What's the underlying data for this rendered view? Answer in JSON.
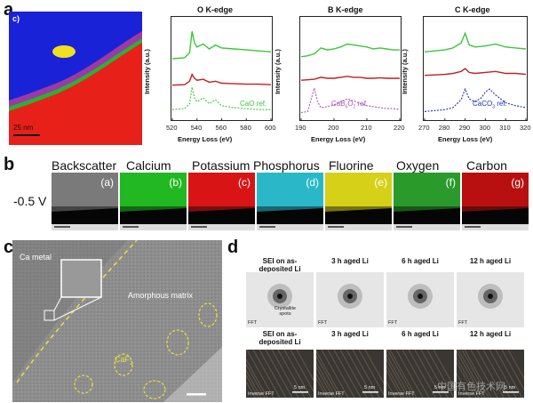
{
  "panel_a": {
    "letter": "a",
    "eels_map_label": "c)",
    "eels_scale": "25 nm",
    "chart_data": [
      {
        "type": "line",
        "title": "O K-edge",
        "xlabel": "Energy Loss (eV)",
        "ylabel": "Intensity (a.u.)",
        "xlim": [
          520,
          600
        ],
        "x_ticks": [
          "520",
          "540",
          "560",
          "580",
          "600"
        ],
        "series": [
          {
            "name": "",
            "color": "#3cc83c",
            "x": [
              520,
              530,
              534,
              536,
              538,
              540,
              545,
              550,
              555,
              560,
              570,
              580,
              590,
              600
            ],
            "y": [
              6.0,
              6.1,
              6.6,
              8.8,
              7.6,
              7.2,
              7.5,
              7.0,
              7.4,
              7.1,
              7.0,
              6.9,
              6.8,
              6.7
            ]
          },
          {
            "name": "",
            "color": "#c02020",
            "x": [
              520,
              530,
              534,
              536,
              538,
              540,
              545,
              550,
              555,
              560,
              570,
              580,
              590,
              600
            ],
            "y": [
              3.3,
              3.35,
              3.7,
              4.4,
              4.0,
              3.8,
              3.9,
              3.6,
              3.7,
              3.5,
              3.45,
              3.4,
              3.4,
              3.35
            ]
          },
          {
            "name": "CaO ref.",
            "color": "#3cc83c",
            "dash": true,
            "x": [
              520,
              530,
              534,
              536,
              538,
              540,
              545,
              550,
              555,
              560,
              570,
              580,
              590,
              600
            ],
            "y": [
              0.8,
              0.9,
              1.4,
              3.1,
              2.0,
              1.6,
              2.0,
              1.4,
              1.8,
              1.2,
              1.0,
              0.9,
              0.8,
              0.8
            ]
          }
        ]
      },
      {
        "type": "line",
        "title": "B K-edge",
        "xlabel": "Energy Loss (eV)",
        "ylabel": "Intensity (a.u.)",
        "xlim": [
          190,
          220
        ],
        "x_ticks": [
          "190",
          "200",
          "210",
          "220"
        ],
        "series": [
          {
            "name": "",
            "color": "#3cc83c",
            "x": [
              190,
              192,
              194,
              196,
              198,
              200,
              202,
              204,
              206,
              208,
              210,
              212,
              214,
              216,
              218,
              220
            ],
            "y": [
              6.2,
              6.3,
              6.5,
              7.1,
              6.9,
              7.0,
              7.2,
              7.5,
              7.4,
              7.3,
              7.2,
              7.0,
              7.1,
              7.0,
              6.9,
              6.9
            ]
          },
          {
            "name": "",
            "color": "#c02020",
            "x": [
              190,
              192,
              194,
              196,
              198,
              200,
              202,
              204,
              206,
              208,
              210,
              212,
              214,
              216,
              218,
              220
            ],
            "y": [
              3.8,
              3.85,
              3.9,
              4.1,
              4.0,
              4.0,
              4.1,
              4.2,
              4.1,
              4.1,
              4.0,
              4.0,
              4.05,
              4.0,
              4.0,
              4.0
            ]
          },
          {
            "name": "CaB6O2 ref.",
            "color": "#b050c0",
            "dash": true,
            "x": [
              190,
              192,
              193,
              194,
              195,
              196,
              198,
              200,
              202,
              204,
              206,
              208,
              210,
              212,
              214,
              216,
              218,
              220
            ],
            "y": [
              0.5,
              0.6,
              1.8,
              3.0,
              1.6,
              1.0,
              1.1,
              1.3,
              1.6,
              1.9,
              1.7,
              1.4,
              1.2,
              1.1,
              1.0,
              0.9,
              0.9,
              0.8
            ]
          }
        ]
      },
      {
        "type": "line",
        "title": "C K-edge",
        "xlabel": "Energy Loss (eV)",
        "ylabel": "Intensity (a.u.)",
        "xlim": [
          270,
          320
        ],
        "x_ticks": [
          "270",
          "280",
          "290",
          "300",
          "310",
          "320"
        ],
        "series": [
          {
            "name": "",
            "color": "#3cc83c",
            "x": [
              270,
              275,
              280,
              284,
              288,
              290,
              292,
              295,
              300,
              305,
              310,
              315,
              320
            ],
            "y": [
              6.7,
              6.8,
              6.9,
              7.1,
              7.6,
              8.6,
              7.4,
              7.2,
              7.3,
              7.5,
              7.2,
              7.1,
              7.0
            ]
          },
          {
            "name": "",
            "color": "#c02020",
            "x": [
              270,
              275,
              280,
              284,
              288,
              290,
              292,
              295,
              300,
              305,
              310,
              315,
              320
            ],
            "y": [
              4.3,
              4.35,
              4.4,
              4.5,
              4.7,
              5.0,
              4.6,
              4.5,
              4.6,
              4.7,
              4.5,
              4.5,
              4.4
            ]
          },
          {
            "name": "CaCO3 ref.",
            "color": "#2030b0",
            "dash": true,
            "x": [
              270,
              275,
              280,
              284,
              288,
              290,
              292,
              295,
              298,
              300,
              302,
              305,
              310,
              315,
              320
            ],
            "y": [
              0.6,
              0.7,
              0.8,
              1.0,
              1.8,
              2.9,
              1.9,
              1.6,
              2.0,
              2.6,
              2.9,
              2.3,
              1.5,
              1.2,
              1.0
            ]
          }
        ]
      }
    ]
  },
  "panel_b": {
    "letter": "b",
    "voltage": "-0.5 V",
    "maps": [
      {
        "title": "Backscatter",
        "tag": "(a)"
      },
      {
        "title": "Calcium",
        "tag": "(b)"
      },
      {
        "title": "Potassium",
        "tag": "(c)"
      },
      {
        "title": "Phosphorus",
        "tag": "(d)"
      },
      {
        "title": "Fluorine",
        "tag": "(e)"
      },
      {
        "title": "Oxygen",
        "tag": "(f)"
      },
      {
        "title": "Carbon",
        "tag": "(g)"
      }
    ],
    "colors": [
      "#7a7a7a",
      "#21b821",
      "#d81414",
      "#2ab8c8",
      "#d6d018",
      "#2a9a2a",
      "#b81010"
    ]
  },
  "panel_c": {
    "letter": "c",
    "ca_metal": "Ca metal",
    "matrix": "Amorphous matrix",
    "caf2": "CaF2"
  },
  "panel_d": {
    "letter": "d",
    "headers": [
      "SEI on as-deposited Li",
      "3 h aged Li",
      "6 h aged Li",
      "12 h aged Li"
    ],
    "crystallite": "Crystallite spots",
    "fft": "FFT",
    "inverse_fft": "Inverse FFT",
    "scale": "5 nm"
  },
  "watermark": "中国有色技术网"
}
